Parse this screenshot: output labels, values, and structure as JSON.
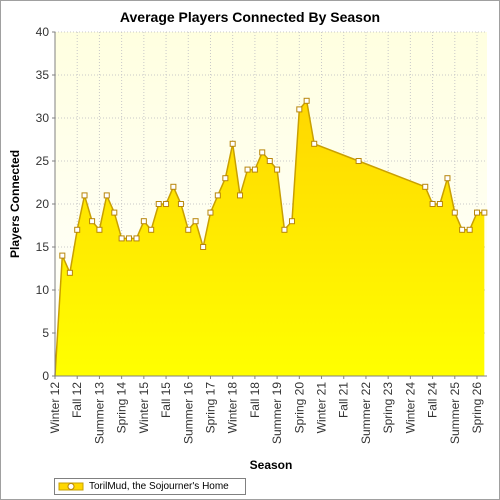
{
  "chart_data": {
    "type": "area",
    "title": "Average Players Connected By Season",
    "xlabel": "Season",
    "ylabel": "Players Connected",
    "ylim": [
      0,
      40
    ],
    "yticks": [
      0,
      5,
      10,
      15,
      20,
      25,
      30,
      35,
      40
    ],
    "grid": true,
    "legend_position": "bottom-left",
    "colors": {
      "fill_top": "#ffd700",
      "fill_bottom": "#ffff00",
      "line": "#c9a000",
      "marker_fill": "#ffffff",
      "marker_stroke": "#b8860b",
      "plot_bg_top": "#ffffe0",
      "plot_bg_bottom": "#ffffff",
      "grid": "#c8c8c8"
    },
    "tick_labels": [
      "Winter 12",
      "Fall 12",
      "Summer 13",
      "Spring 14",
      "Winter 15",
      "Fall 15",
      "Summer 16",
      "Spring 17",
      "Winter 18",
      "Fall 18",
      "Summer 19",
      "Spring 20",
      "Winter 21",
      "Fall 21",
      "Summer 22",
      "Spring 23",
      "Winter 24",
      "Fall 24",
      "Summer 25",
      "Spring 26"
    ],
    "series": [
      {
        "name": "TorilMud, the Sojourner's Home",
        "points": [
          {
            "x": 0.0,
            "y": 0
          },
          {
            "x": 0.33,
            "y": 14
          },
          {
            "x": 0.67,
            "y": 12
          },
          {
            "x": 1.0,
            "y": 17
          },
          {
            "x": 1.33,
            "y": 21
          },
          {
            "x": 1.67,
            "y": 18
          },
          {
            "x": 2.0,
            "y": 17
          },
          {
            "x": 2.33,
            "y": 21
          },
          {
            "x": 2.67,
            "y": 19
          },
          {
            "x": 3.0,
            "y": 16
          },
          {
            "x": 3.33,
            "y": 16
          },
          {
            "x": 3.67,
            "y": 16
          },
          {
            "x": 4.0,
            "y": 18
          },
          {
            "x": 4.33,
            "y": 17
          },
          {
            "x": 4.67,
            "y": 20
          },
          {
            "x": 5.0,
            "y": 20
          },
          {
            "x": 5.33,
            "y": 22
          },
          {
            "x": 5.67,
            "y": 20
          },
          {
            "x": 6.0,
            "y": 17
          },
          {
            "x": 6.33,
            "y": 18
          },
          {
            "x": 6.67,
            "y": 15
          },
          {
            "x": 7.0,
            "y": 19
          },
          {
            "x": 7.33,
            "y": 21
          },
          {
            "x": 7.67,
            "y": 23
          },
          {
            "x": 8.0,
            "y": 27
          },
          {
            "x": 8.33,
            "y": 21
          },
          {
            "x": 8.67,
            "y": 24
          },
          {
            "x": 9.0,
            "y": 24
          },
          {
            "x": 9.33,
            "y": 26
          },
          {
            "x": 9.67,
            "y": 25
          },
          {
            "x": 10.0,
            "y": 24
          },
          {
            "x": 10.33,
            "y": 17
          },
          {
            "x": 10.67,
            "y": 18
          },
          {
            "x": 11.0,
            "y": 31
          },
          {
            "x": 11.33,
            "y": 32
          },
          {
            "x": 11.67,
            "y": 27
          },
          {
            "x": 13.67,
            "y": 25
          },
          {
            "x": 16.67,
            "y": 22
          },
          {
            "x": 17.0,
            "y": 20
          },
          {
            "x": 17.33,
            "y": 20
          },
          {
            "x": 17.67,
            "y": 23
          },
          {
            "x": 18.0,
            "y": 19
          },
          {
            "x": 18.33,
            "y": 17
          },
          {
            "x": 18.67,
            "y": 17
          },
          {
            "x": 19.0,
            "y": 19
          },
          {
            "x": 19.33,
            "y": 19
          }
        ]
      }
    ]
  }
}
